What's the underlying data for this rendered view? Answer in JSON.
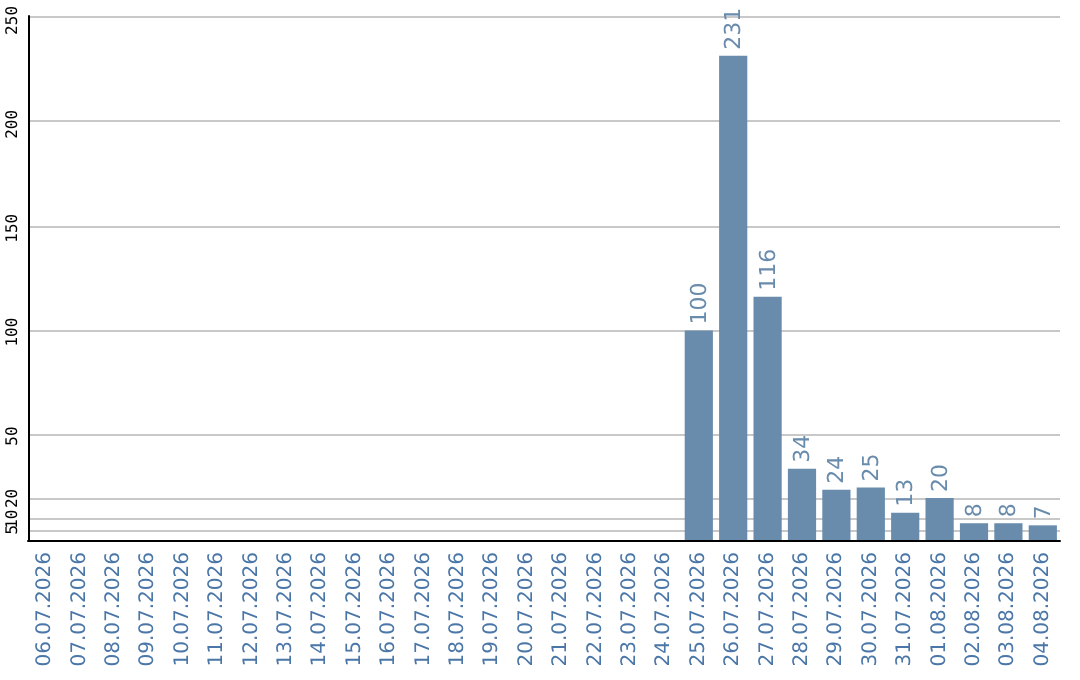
{
  "chart_data": {
    "type": "bar",
    "categories": [
      "06.07.2026",
      "07.07.2026",
      "08.07.2026",
      "09.07.2026",
      "10.07.2026",
      "11.07.2026",
      "12.07.2026",
      "13.07.2026",
      "14.07.2026",
      "15.07.2026",
      "16.07.2026",
      "17.07.2026",
      "18.07.2026",
      "19.07.2026",
      "20.07.2026",
      "21.07.2026",
      "22.07.2026",
      "23.07.2026",
      "24.07.2026",
      "25.07.2026",
      "26.07.2026",
      "27.07.2026",
      "28.07.2026",
      "29.07.2026",
      "30.07.2026",
      "31.07.2026",
      "01.08.2026",
      "02.08.2026",
      "03.08.2026",
      "04.08.2026"
    ],
    "values": [
      0,
      0,
      0,
      0,
      0,
      0,
      0,
      0,
      0,
      0,
      0,
      0,
      0,
      0,
      0,
      0,
      0,
      0,
      0,
      100,
      231,
      116,
      34,
      24,
      25,
      13,
      20,
      8,
      8,
      7
    ],
    "value_labels": [
      null,
      null,
      null,
      null,
      null,
      null,
      null,
      null,
      null,
      null,
      null,
      null,
      null,
      null,
      null,
      null,
      null,
      null,
      null,
      "100",
      "231",
      "116",
      "34",
      "24",
      "25",
      "13",
      "20",
      "8",
      "8",
      "7"
    ],
    "color": "#6a8cac",
    "ylim": [
      0,
      250
    ],
    "yticks": [
      5,
      10,
      20,
      50,
      100,
      150,
      200,
      250
    ],
    "grid": "y"
  }
}
